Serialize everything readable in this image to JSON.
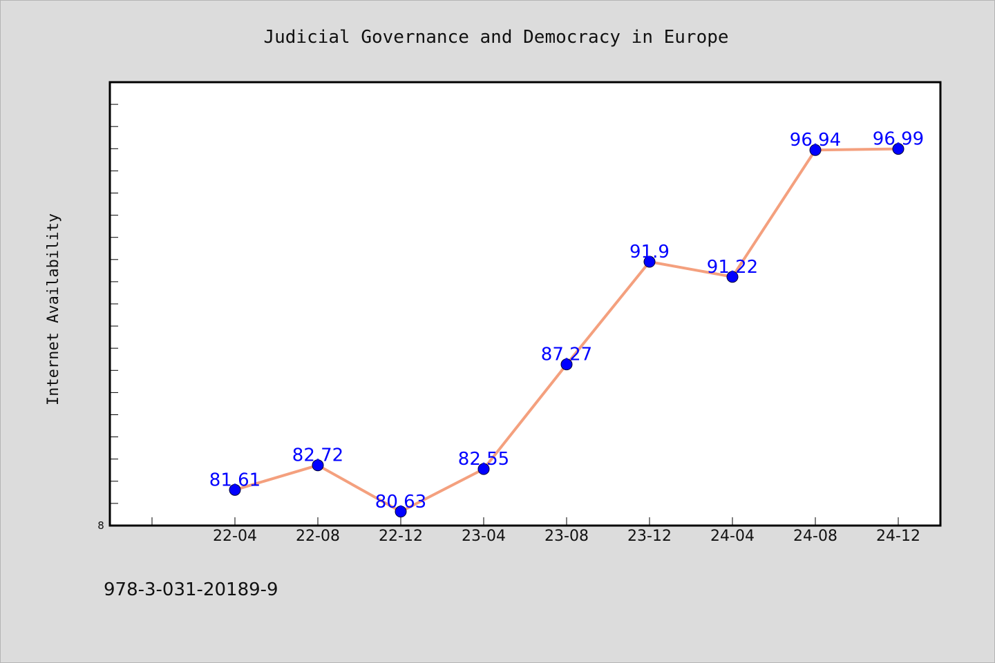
{
  "chart_data": {
    "type": "line",
    "title": "Judicial Governance and Democracy in Europe",
    "xlabel": "",
    "ylabel": "Internet Availability",
    "categories": [
      "22-04",
      "22-08",
      "22-12",
      "23-04",
      "23-08",
      "23-12",
      "24-04",
      "24-08",
      "24-12"
    ],
    "series": [
      {
        "values": [
          81.61,
          82.72,
          80.63,
          82.55,
          87.27,
          91.9,
          91.22,
          96.94,
          96.99
        ],
        "labels": [
          "81.61",
          "82.72",
          "80.63",
          "82.55",
          "87.27",
          "91.9",
          "91.22",
          "96.94",
          "96.99"
        ],
        "line_color": "#f4a07e",
        "marker_color": "#0000ff"
      }
    ],
    "ylim": [
      80,
      100
    ],
    "y_tick_label": "8",
    "grid": false,
    "legend": "none"
  },
  "footer": {
    "text": "978-3-031-20189-9"
  }
}
